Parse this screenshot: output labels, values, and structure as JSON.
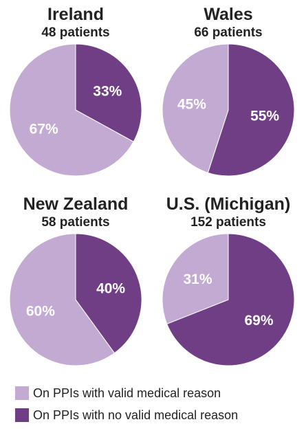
{
  "colors": {
    "valid": "#c2aad2",
    "no_valid": "#6f3e85"
  },
  "legend": [
    {
      "key": "valid",
      "label": "On PPIs with valid medical reason"
    },
    {
      "key": "no_valid",
      "label": "On PPIs with no valid medical reason"
    }
  ],
  "chart_data": [
    {
      "type": "pie",
      "title": "Ireland",
      "subtitle": "48 patients",
      "slices": [
        {
          "key": "no_valid",
          "value": 33,
          "label": "33%"
        },
        {
          "key": "valid",
          "value": 67,
          "label": "67%"
        }
      ]
    },
    {
      "type": "pie",
      "title": "Wales",
      "subtitle": "66 patients",
      "slices": [
        {
          "key": "no_valid",
          "value": 55,
          "label": "55%"
        },
        {
          "key": "valid",
          "value": 45,
          "label": "45%"
        }
      ]
    },
    {
      "type": "pie",
      "title": "New Zealand",
      "subtitle": "58 patients",
      "slices": [
        {
          "key": "no_valid",
          "value": 40,
          "label": "40%"
        },
        {
          "key": "valid",
          "value": 60,
          "label": "60%"
        }
      ]
    },
    {
      "type": "pie",
      "title": "U.S. (Michigan)",
      "subtitle": "152 patients",
      "slices": [
        {
          "key": "no_valid",
          "value": 69,
          "label": "69%"
        },
        {
          "key": "valid",
          "value": 31,
          "label": "31%"
        }
      ]
    }
  ]
}
